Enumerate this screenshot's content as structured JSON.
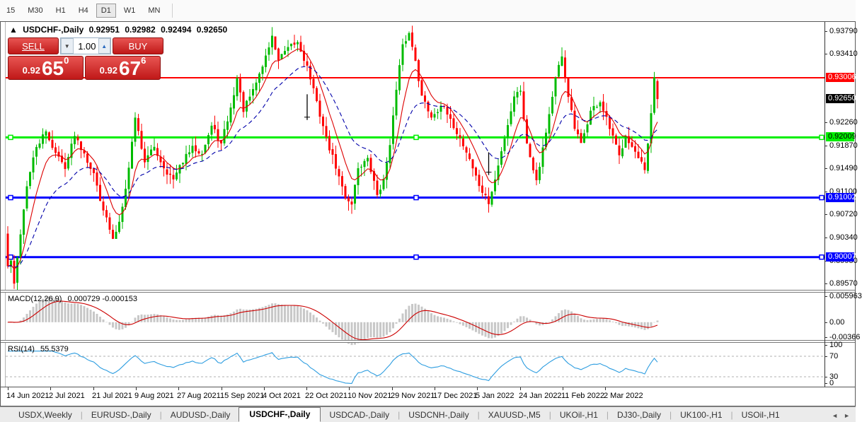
{
  "toolbar": {
    "timeframes": [
      "15",
      "M30",
      "H1",
      "H4",
      "D1",
      "W1",
      "MN"
    ],
    "active": "D1"
  },
  "chart_header": {
    "collapse_icon": "▲",
    "symbol": "USDCHF-,Daily",
    "open": "0.92951",
    "high": "0.92982",
    "low": "0.92494",
    "close": "0.92650"
  },
  "trade_panel": {
    "sell_label": "SELL",
    "buy_label": "BUY",
    "volume": "1.00",
    "spin_down": "▼",
    "spin_up": "▲",
    "sell_price": {
      "small": "0.92",
      "big": "65",
      "sup": "0"
    },
    "buy_price": {
      "small": "0.92",
      "big": "67",
      "sup": "6"
    }
  },
  "indicator_titles": {
    "macd": {
      "title": "MACD(12,26,9)",
      "values": "0.000729 -0.000153"
    },
    "rsi": {
      "title": "RSI(14)",
      "value": "55.5379"
    }
  },
  "price_axis": {
    "ticks": [
      "0.93790",
      "0.93410",
      "0.92260",
      "0.91870",
      "0.91490",
      "0.91100",
      "0.90720",
      "0.90340",
      "0.89950",
      "0.89570"
    ],
    "badges": [
      {
        "label": "0.93006",
        "bg": "#ff0000",
        "fg": "#ffffff",
        "price": 0.93006
      },
      {
        "label": "0.92650",
        "bg": "#000000",
        "fg": "#ffffff",
        "price": 0.9265
      },
      {
        "label": "0.92009",
        "bg": "#00ee00",
        "fg": "#000000",
        "price": 0.92009
      },
      {
        "label": "0.91002",
        "bg": "#0000ff",
        "fg": "#ffffff",
        "price": 0.91002
      },
      {
        "label": "0.90007",
        "bg": "#0000ff",
        "fg": "#ffffff",
        "price": 0.90007
      }
    ],
    "macd_ticks": [
      {
        "label": "0.005963",
        "value": 0.005963
      },
      {
        "label": "0.00",
        "value": 0.0
      },
      {
        "label": "-0.00366",
        "value": -0.00366
      }
    ],
    "rsi_ticks": [
      {
        "label": "100",
        "value": 100
      },
      {
        "label": "70",
        "value": 70
      },
      {
        "label": "30",
        "value": 30
      },
      {
        "label": "0",
        "value": 0
      }
    ]
  },
  "time_axis": {
    "labels": [
      "14 Jun 2021",
      "2 Jul 2021",
      "21 Jul 2021",
      "9 Aug 2021",
      "27 Aug 2021",
      "15 Sep 2021",
      "4 Oct 2021",
      "22 Oct 2021",
      "10 Nov 2021",
      "29 Nov 2021",
      "17 Dec 2021",
      "5 Jan 2022",
      "24 Jan 2022",
      "11 Feb 2022",
      "2 Mar 2022"
    ]
  },
  "tabs": {
    "items": [
      "USDX,Weekly",
      "EURUSD-,Daily",
      "AUDUSD-,Daily",
      "USDCHF-,Daily",
      "USDCAD-,Daily",
      "USDCNH-,Daily",
      "XAUUSD-,M5",
      "UKOil-,H1",
      "DJ30-,Daily",
      "UK100-,H1",
      "USOil-,H1"
    ],
    "active_index": 3,
    "scroll_left": "◄",
    "scroll_right": "►"
  },
  "chart_data": [
    {
      "name": "price",
      "type": "candlestick",
      "symbol": "USDCHF-",
      "timeframe": "Daily",
      "grid": false,
      "y_range": [
        0.8946,
        0.9394
      ],
      "bars_total": 205,
      "up_color": "#00bb00",
      "down_color": "#ff0000",
      "last_bar": {
        "open": 0.92951,
        "high": 0.92982,
        "low": 0.92494,
        "close": 0.9265
      },
      "bid": "0.92650",
      "ask": "0.92676",
      "levels": [
        {
          "price": 0.93006,
          "color": "#ff0000",
          "width": 2,
          "selected": false
        },
        {
          "price": 0.92009,
          "color": "#00ee00",
          "width": 3,
          "selected": true
        },
        {
          "price": 0.91002,
          "color": "#0000ff",
          "width": 3,
          "selected": true
        },
        {
          "price": 0.90007,
          "color": "#0000ff",
          "width": 3,
          "selected": true
        }
      ],
      "overlays": [
        {
          "type": "ema",
          "period": 8,
          "color": "#dd0000",
          "style": "solid"
        },
        {
          "type": "ema",
          "period": 21,
          "color": "#0000aa",
          "style": "dashed"
        }
      ],
      "markers": [
        {
          "bar": 94,
          "price_top": 0.9273,
          "price_bottom": 0.923
        },
        {
          "bar": 151,
          "price_top": 0.9176,
          "price_bottom": 0.9138
        }
      ],
      "close_waypoints": [
        [
          0,
          0.8985
        ],
        [
          1,
          0.8995
        ],
        [
          2,
          0.8955
        ],
        [
          4,
          0.904
        ],
        [
          6,
          0.912
        ],
        [
          9,
          0.9185
        ],
        [
          12,
          0.921
        ],
        [
          15,
          0.9175
        ],
        [
          18,
          0.915
        ],
        [
          21,
          0.9205
        ],
        [
          24,
          0.9175
        ],
        [
          27,
          0.914
        ],
        [
          30,
          0.908
        ],
        [
          33,
          0.903
        ],
        [
          35,
          0.906
        ],
        [
          38,
          0.915
        ],
        [
          40,
          0.9235
        ],
        [
          43,
          0.916
        ],
        [
          46,
          0.9185
        ],
        [
          49,
          0.915
        ],
        [
          52,
          0.913
        ],
        [
          55,
          0.916
        ],
        [
          58,
          0.9185
        ],
        [
          61,
          0.9175
        ],
        [
          64,
          0.922
        ],
        [
          67,
          0.919
        ],
        [
          70,
          0.925
        ],
        [
          72,
          0.93
        ],
        [
          74,
          0.9245
        ],
        [
          77,
          0.928
        ],
        [
          80,
          0.932
        ],
        [
          83,
          0.937
        ],
        [
          85,
          0.933
        ],
        [
          88,
          0.935
        ],
        [
          91,
          0.936
        ],
        [
          94,
          0.932
        ],
        [
          97,
          0.926
        ],
        [
          100,
          0.92
        ],
        [
          103,
          0.915
        ],
        [
          106,
          0.91
        ],
        [
          108,
          0.909
        ],
        [
          110,
          0.915
        ],
        [
          113,
          0.9165
        ],
        [
          116,
          0.9105
        ],
        [
          118,
          0.913
        ],
        [
          120,
          0.919
        ],
        [
          122,
          0.928
        ],
        [
          124,
          0.9355
        ],
        [
          126,
          0.9375
        ],
        [
          128,
          0.933
        ],
        [
          130,
          0.927
        ],
        [
          133,
          0.9235
        ],
        [
          136,
          0.9255
        ],
        [
          139,
          0.923
        ],
        [
          142,
          0.92
        ],
        [
          145,
          0.9165
        ],
        [
          148,
          0.912
        ],
        [
          151,
          0.909
        ],
        [
          153,
          0.913
        ],
        [
          156,
          0.92
        ],
        [
          159,
          0.927
        ],
        [
          161,
          0.928
        ],
        [
          163,
          0.919
        ],
        [
          166,
          0.913
        ],
        [
          169,
          0.921
        ],
        [
          172,
          0.93
        ],
        [
          174,
          0.9335
        ],
        [
          176,
          0.927
        ],
        [
          178,
          0.9215
        ],
        [
          180,
          0.919
        ],
        [
          183,
          0.9245
        ],
        [
          186,
          0.926
        ],
        [
          189,
          0.9215
        ],
        [
          192,
          0.917
        ],
        [
          194,
          0.9205
        ],
        [
          196,
          0.9185
        ],
        [
          198,
          0.9165
        ],
        [
          200,
          0.9145
        ],
        [
          201,
          0.919
        ],
        [
          202,
          0.924
        ],
        [
          203,
          0.93
        ],
        [
          204,
          0.9265
        ]
      ]
    },
    {
      "name": "macd",
      "type": "bar",
      "params": [
        12,
        26,
        9
      ],
      "current_main": 0.000729,
      "current_signal": -0.000153,
      "y_range": [
        -0.00405,
        0.00672
      ],
      "y_axis": [
        0.005963,
        0.0,
        -0.00366
      ],
      "hist_color": "#c8c8c8",
      "signal_color": "#cc0000"
    },
    {
      "name": "rsi",
      "type": "line",
      "period": 14,
      "current": 55.5379,
      "levels": [
        70,
        30
      ],
      "y_range": [
        12.0,
        96.2
      ],
      "y_axis": [
        100,
        70,
        30,
        0
      ],
      "color": "#2d9de0",
      "level_color": "#b0b0b0"
    }
  ]
}
